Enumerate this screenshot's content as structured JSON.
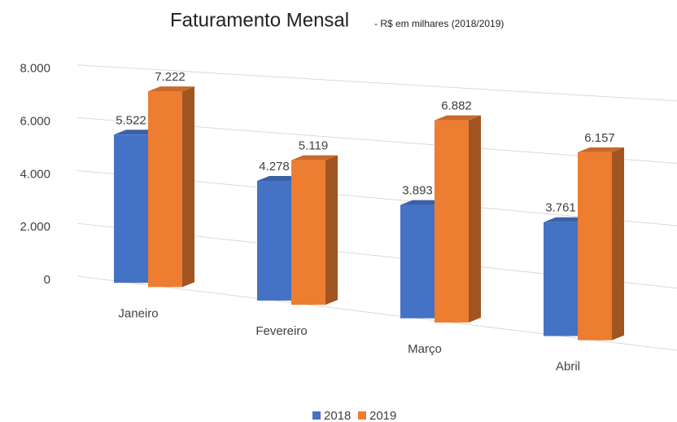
{
  "chart_data": {
    "type": "bar3d",
    "title": "Faturamento Mensal",
    "subtitle": "- R$ em milhares (2018/2019)",
    "categories": [
      "Janeiro",
      "Fevereiro",
      "Março",
      "Abril"
    ],
    "series": [
      {
        "name": "2018",
        "color": "#4472c4",
        "values": [
          5522,
          4278,
          3893,
          3761
        ],
        "value_labels": [
          "5.522",
          "4.278",
          "3.893",
          "3.761"
        ]
      },
      {
        "name": "2019",
        "color": "#ed7d31",
        "values": [
          7222,
          5119,
          6882,
          6157
        ],
        "value_labels": [
          "7.222",
          "5.119",
          "6.882",
          "6.157"
        ]
      }
    ],
    "ylim": [
      0,
      8000
    ],
    "yticks": [
      0,
      {
        "value": 2000,
        "label": "2.000"
      },
      {
        "value": 4000,
        "label": "4.000"
      },
      {
        "value": 6000,
        "label": "6.000"
      },
      {
        "value": 8000,
        "label": "8.000"
      }
    ],
    "grid": true,
    "legend": "bottom"
  }
}
